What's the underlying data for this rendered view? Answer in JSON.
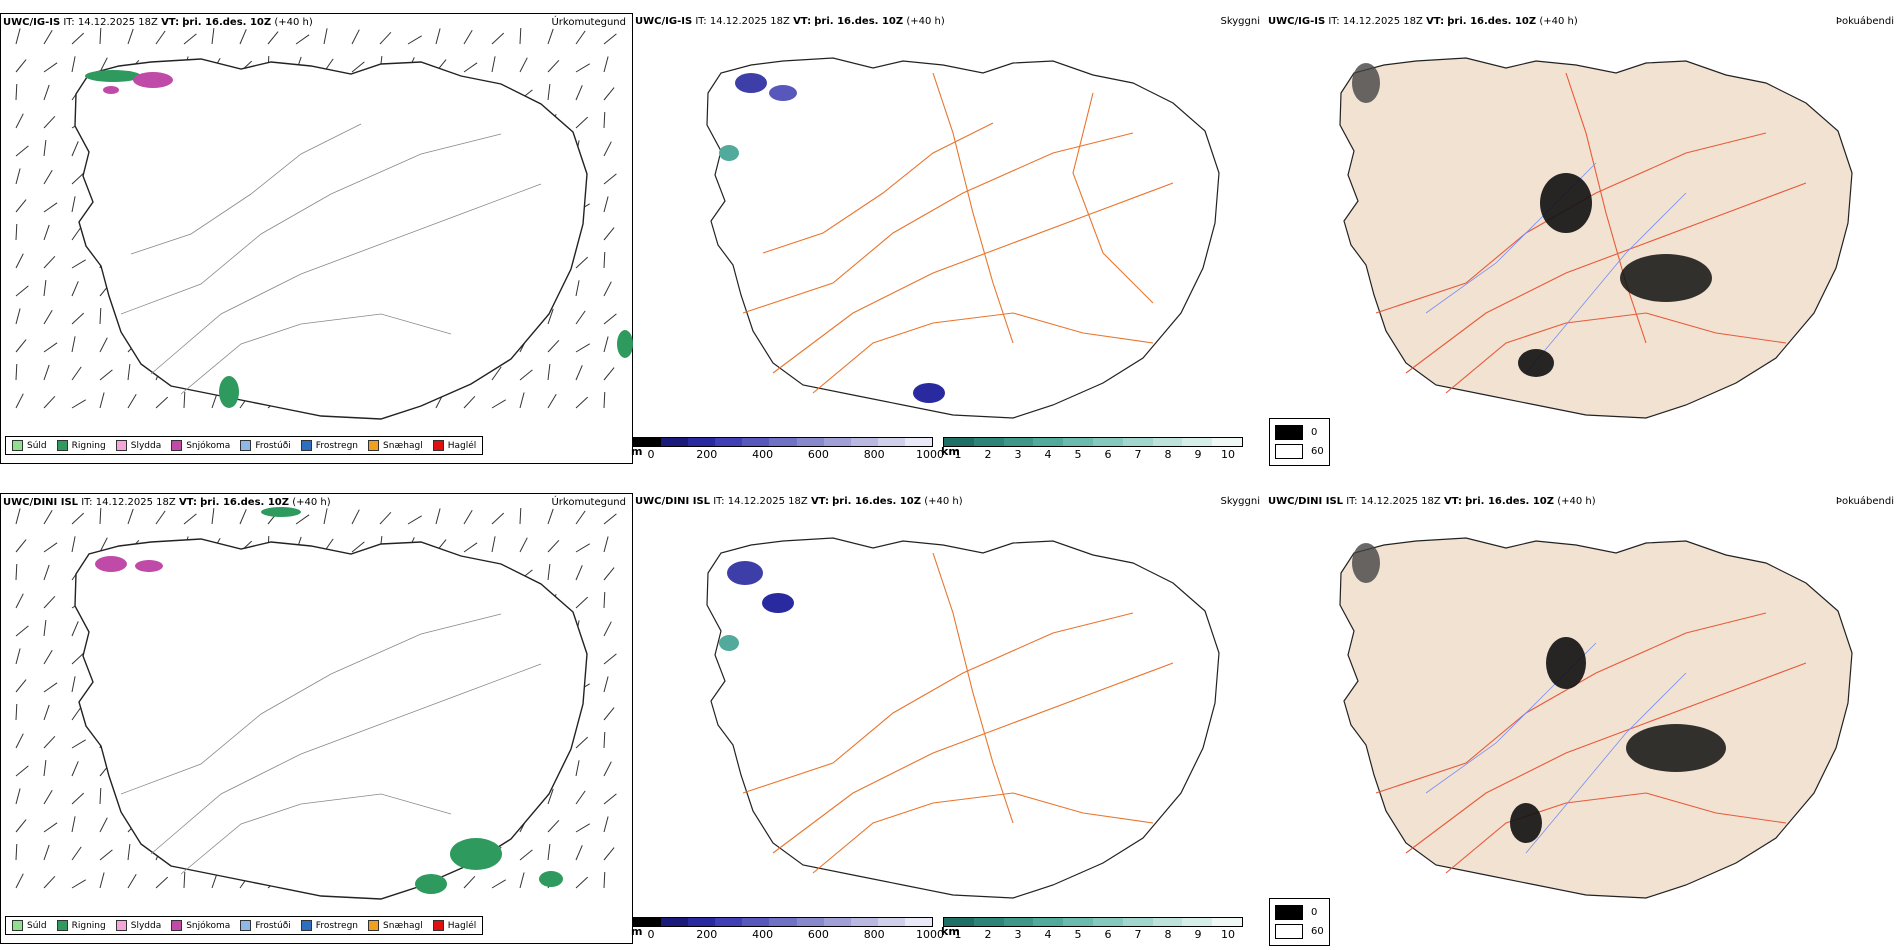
{
  "rows": [
    {
      "model": "UWC/IG-IS",
      "it_label": "IT:",
      "it_value": "14.12.2025 18Z",
      "vt_label": "VT:",
      "vt_value": "þri. 16.des. 10Z",
      "lead": "(+40 h)",
      "titles": {
        "precip_type": "Úrkomutegund",
        "visibility": "Skyggni",
        "fog": "Þokuábendi"
      }
    },
    {
      "model": "UWC/DINI ISL",
      "it_label": "IT:",
      "it_value": "14.12.2025 18Z",
      "vt_label": "VT:",
      "vt_value": "þri. 16.des. 10Z",
      "lead": "(+40 h)",
      "titles": {
        "precip_type": "Úrkomutegund",
        "visibility": "Skyggni",
        "fog": "Þokuábendi"
      }
    }
  ],
  "precip_legend": [
    {
      "label": "Súld",
      "color": "#8ee08e"
    },
    {
      "label": "Rigning",
      "color": "#2e9a5e"
    },
    {
      "label": "Slydda",
      "color": "#f4a6d8"
    },
    {
      "label": "Snjókoma",
      "color": "#c04aa8"
    },
    {
      "label": "Frostúði",
      "color": "#8fb8ea"
    },
    {
      "label": "Frostregn",
      "color": "#2f6fc0"
    },
    {
      "label": "Snæhagl",
      "color": "#f0a020"
    },
    {
      "label": "Haglél",
      "color": "#e01010"
    }
  ],
  "height_scale": {
    "unit": "m",
    "ticks": [
      "0",
      "200",
      "400",
      "600",
      "800",
      "1000"
    ],
    "colors": [
      "#000000",
      "#1a1a7a",
      "#2a2aa0",
      "#4040b4",
      "#5858bc",
      "#7070c4",
      "#8888cc",
      "#a0a0d6",
      "#b8b8e0",
      "#d0d0ea",
      "#e8e8f6"
    ]
  },
  "km_scale": {
    "unit": "km",
    "ticks": [
      "1",
      "2",
      "3",
      "4",
      "5",
      "6",
      "7",
      "8",
      "9",
      "10"
    ],
    "colors": [
      "#1f6f66",
      "#2e8478",
      "#3e988a",
      "#52aa9c",
      "#6abaae",
      "#84c8be",
      "#a0d6cc",
      "#bce2da",
      "#d6eee8",
      "#f0f8f6"
    ]
  },
  "fog_legend": [
    {
      "label": "0",
      "color": "#000000"
    },
    {
      "label": "60",
      "color": "#ffffff"
    }
  ],
  "colors": {
    "land_fill": "#f2e2d2",
    "coast": "#222222",
    "roads": "#e8752e",
    "fog_roads": "#e85a3a",
    "rivers": "#7a8ef0"
  }
}
